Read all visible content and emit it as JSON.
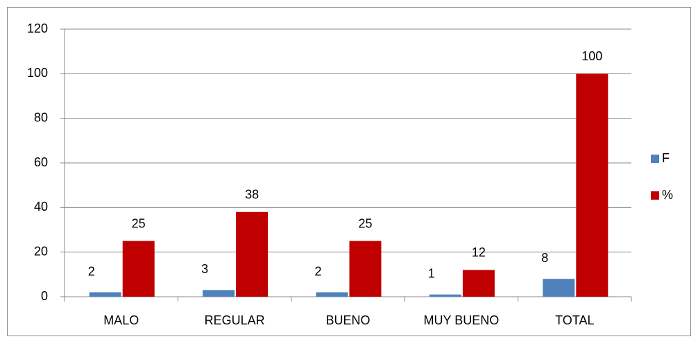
{
  "chart_data": {
    "type": "bar",
    "categories": [
      "MALO",
      "REGULAR",
      "BUENO",
      "MUY BUENO",
      "TOTAL"
    ],
    "series": [
      {
        "name": "F",
        "color": "#4f81bd",
        "values": [
          2,
          3,
          2,
          1,
          8
        ]
      },
      {
        "name": "%",
        "color": "#c00000",
        "values": [
          25,
          38,
          25,
          12,
          100
        ]
      }
    ],
    "ylim": [
      0,
      120
    ],
    "yticks": [
      0,
      20,
      40,
      60,
      80,
      100,
      120
    ],
    "grid": true,
    "legend": "right"
  }
}
